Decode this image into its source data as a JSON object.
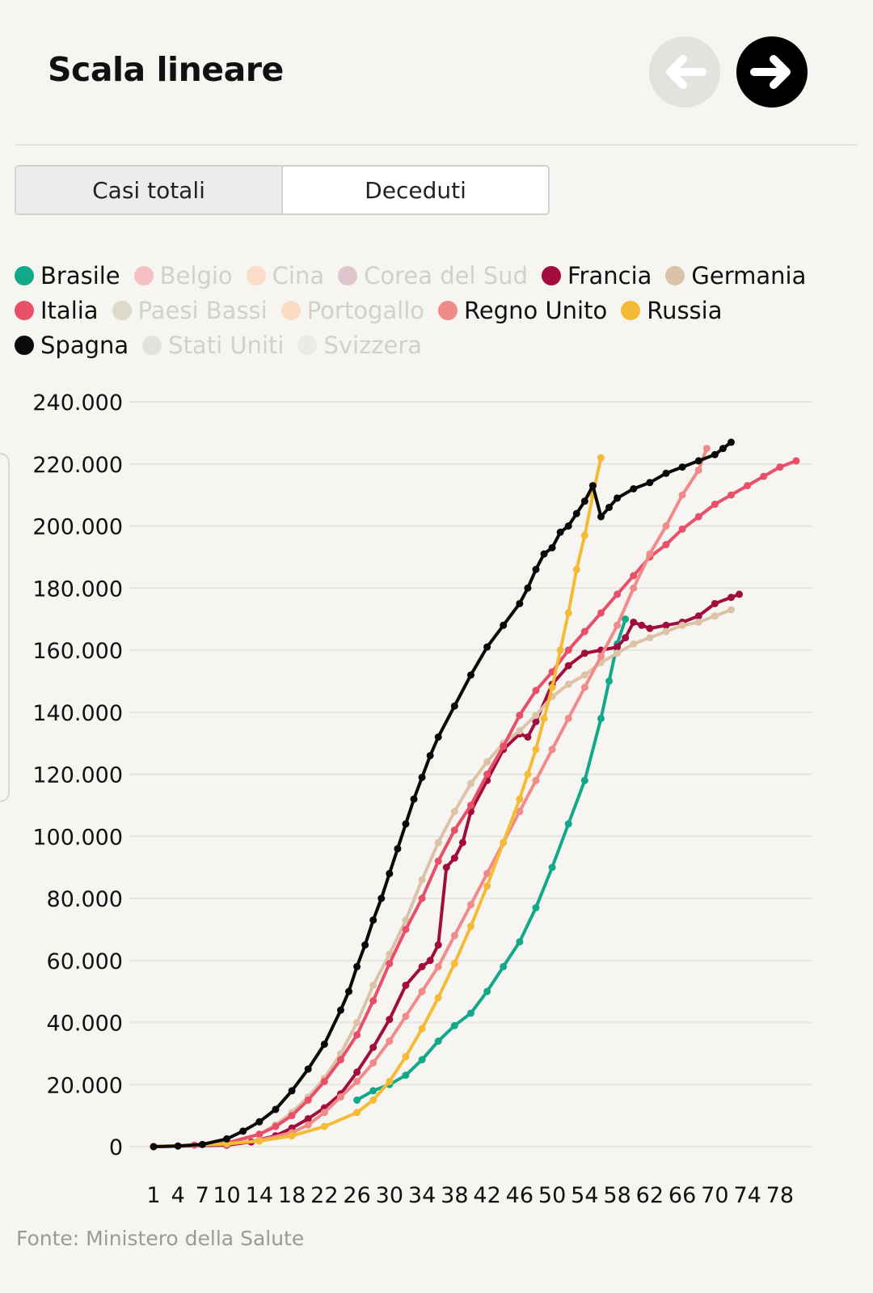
{
  "header": {
    "title": "Scala lineare",
    "prev_icon": "arrow-left-icon",
    "next_icon": "arrow-right-icon"
  },
  "tabs": [
    {
      "label": "Casi totali",
      "active": true
    },
    {
      "label": "Deceduti",
      "active": false
    }
  ],
  "source": "Fonte: Ministero della Salute",
  "chart_data": {
    "type": "line",
    "title": "",
    "xlabel": "",
    "ylabel": "",
    "xlim": [
      1,
      80
    ],
    "ylim": [
      0,
      240000
    ],
    "x_ticks": [
      "1",
      "4",
      "7",
      "10",
      "14",
      "18",
      "22",
      "26",
      "30",
      "34",
      "38",
      "42",
      "46",
      "50",
      "54",
      "58",
      "62",
      "66",
      "70",
      "74",
      "78"
    ],
    "y_ticks": [
      "0",
      "20.000",
      "40.000",
      "60.000",
      "80.000",
      "100.000",
      "120.000",
      "140.000",
      "160.000",
      "180.000",
      "200.000",
      "220.000",
      "240.000"
    ],
    "grid": true,
    "legend_position": "top",
    "series": [
      {
        "name": "Brasile",
        "color": "#12a98b",
        "active": true,
        "points": [
          [
            26,
            15000
          ],
          [
            28,
            18000
          ],
          [
            30,
            20000
          ],
          [
            32,
            23000
          ],
          [
            34,
            28000
          ],
          [
            36,
            34000
          ],
          [
            38,
            39000
          ],
          [
            40,
            43000
          ],
          [
            42,
            50000
          ],
          [
            44,
            58000
          ],
          [
            46,
            66000
          ],
          [
            48,
            77000
          ],
          [
            50,
            90000
          ],
          [
            52,
            104000
          ],
          [
            54,
            118000
          ],
          [
            56,
            138000
          ],
          [
            57,
            150000
          ],
          [
            58,
            162000
          ],
          [
            59,
            170000
          ]
        ]
      },
      {
        "name": "Belgio",
        "color": "#f4c0c4",
        "active": false,
        "points": []
      },
      {
        "name": "Cina",
        "color": "#fbdcc8",
        "active": false,
        "points": []
      },
      {
        "name": "Corea del Sud",
        "color": "#dfc5cc",
        "active": false,
        "points": []
      },
      {
        "name": "Francia",
        "color": "#a10e3e",
        "active": true,
        "points": [
          [
            1,
            0
          ],
          [
            10,
            500
          ],
          [
            13,
            1500
          ],
          [
            16,
            3500
          ],
          [
            18,
            6000
          ],
          [
            20,
            9000
          ],
          [
            22,
            12500
          ],
          [
            24,
            17000
          ],
          [
            26,
            24000
          ],
          [
            28,
            32000
          ],
          [
            30,
            41000
          ],
          [
            32,
            52000
          ],
          [
            34,
            58000
          ],
          [
            35,
            60000
          ],
          [
            36,
            65000
          ],
          [
            37,
            90000
          ],
          [
            38,
            93000
          ],
          [
            39,
            98000
          ],
          [
            40,
            108000
          ],
          [
            42,
            118000
          ],
          [
            44,
            128000
          ],
          [
            46,
            133000
          ],
          [
            47,
            132000
          ],
          [
            48,
            137000
          ],
          [
            50,
            149000
          ],
          [
            52,
            155000
          ],
          [
            54,
            159000
          ],
          [
            56,
            160000
          ],
          [
            58,
            161000
          ],
          [
            59,
            164000
          ],
          [
            60,
            169000
          ],
          [
            61,
            168000
          ],
          [
            62,
            167000
          ],
          [
            64,
            168000
          ],
          [
            66,
            169000
          ],
          [
            68,
            171000
          ],
          [
            70,
            175000
          ],
          [
            72,
            177000
          ],
          [
            73,
            178000
          ]
        ]
      },
      {
        "name": "Germania",
        "color": "#dcc3a8",
        "active": true,
        "points": [
          [
            1,
            0
          ],
          [
            10,
            800
          ],
          [
            14,
            4000
          ],
          [
            16,
            7000
          ],
          [
            18,
            11000
          ],
          [
            20,
            16000
          ],
          [
            22,
            22000
          ],
          [
            24,
            30000
          ],
          [
            26,
            40000
          ],
          [
            28,
            52000
          ],
          [
            30,
            62000
          ],
          [
            32,
            73000
          ],
          [
            34,
            86000
          ],
          [
            36,
            98000
          ],
          [
            38,
            108000
          ],
          [
            40,
            117000
          ],
          [
            42,
            124000
          ],
          [
            44,
            130000
          ],
          [
            46,
            134000
          ],
          [
            48,
            139000
          ],
          [
            50,
            145000
          ],
          [
            52,
            149000
          ],
          [
            54,
            152000
          ],
          [
            56,
            156000
          ],
          [
            58,
            159000
          ],
          [
            60,
            162000
          ],
          [
            62,
            164000
          ],
          [
            64,
            166000
          ],
          [
            66,
            168000
          ],
          [
            68,
            169000
          ],
          [
            70,
            171000
          ],
          [
            72,
            173000
          ]
        ]
      },
      {
        "name": "Italia",
        "color": "#e84f68",
        "active": true,
        "points": [
          [
            1,
            0
          ],
          [
            6,
            500
          ],
          [
            10,
            1200
          ],
          [
            14,
            4000
          ],
          [
            16,
            6500
          ],
          [
            18,
            10000
          ],
          [
            20,
            15000
          ],
          [
            22,
            21000
          ],
          [
            24,
            28000
          ],
          [
            26,
            36000
          ],
          [
            28,
            47000
          ],
          [
            30,
            59000
          ],
          [
            32,
            70000
          ],
          [
            34,
            80000
          ],
          [
            36,
            92000
          ],
          [
            38,
            102000
          ],
          [
            40,
            110000
          ],
          [
            42,
            120000
          ],
          [
            44,
            129000
          ],
          [
            46,
            139000
          ],
          [
            48,
            147000
          ],
          [
            50,
            153000
          ],
          [
            52,
            160000
          ],
          [
            54,
            166000
          ],
          [
            56,
            172000
          ],
          [
            58,
            178000
          ],
          [
            60,
            184000
          ],
          [
            62,
            190000
          ],
          [
            64,
            194000
          ],
          [
            66,
            199000
          ],
          [
            68,
            203000
          ],
          [
            70,
            207000
          ],
          [
            72,
            210000
          ],
          [
            74,
            213000
          ],
          [
            76,
            216000
          ],
          [
            78,
            219000
          ],
          [
            80,
            221000
          ]
        ]
      },
      {
        "name": "Paesi Bassi",
        "color": "#dddccb",
        "active": false,
        "points": []
      },
      {
        "name": "Portogallo",
        "color": "#fbdbbf",
        "active": false,
        "points": []
      },
      {
        "name": "Regno Unito",
        "color": "#f08b8a",
        "active": true,
        "points": [
          [
            1,
            0
          ],
          [
            10,
            800
          ],
          [
            14,
            2000
          ],
          [
            18,
            4500
          ],
          [
            20,
            7000
          ],
          [
            22,
            11000
          ],
          [
            24,
            16000
          ],
          [
            26,
            21000
          ],
          [
            28,
            27000
          ],
          [
            30,
            34000
          ],
          [
            32,
            42000
          ],
          [
            34,
            50000
          ],
          [
            36,
            58000
          ],
          [
            38,
            68000
          ],
          [
            40,
            78000
          ],
          [
            42,
            88000
          ],
          [
            44,
            98000
          ],
          [
            46,
            108000
          ],
          [
            48,
            118000
          ],
          [
            50,
            128000
          ],
          [
            52,
            138000
          ],
          [
            54,
            148000
          ],
          [
            56,
            158000
          ],
          [
            58,
            168000
          ],
          [
            60,
            180000
          ],
          [
            62,
            191000
          ],
          [
            64,
            200000
          ],
          [
            66,
            210000
          ],
          [
            68,
            218000
          ],
          [
            69,
            225000
          ]
        ]
      },
      {
        "name": "Russia",
        "color": "#f5bb37",
        "active": true,
        "points": [
          [
            1,
            0
          ],
          [
            10,
            1000
          ],
          [
            14,
            1800
          ],
          [
            18,
            3500
          ],
          [
            22,
            6500
          ],
          [
            26,
            11000
          ],
          [
            28,
            15000
          ],
          [
            30,
            21000
          ],
          [
            32,
            29000
          ],
          [
            34,
            38000
          ],
          [
            36,
            48000
          ],
          [
            38,
            59000
          ],
          [
            40,
            71000
          ],
          [
            42,
            84000
          ],
          [
            44,
            98000
          ],
          [
            46,
            112000
          ],
          [
            47,
            120000
          ],
          [
            48,
            128000
          ],
          [
            49,
            138000
          ],
          [
            50,
            148000
          ],
          [
            51,
            160000
          ],
          [
            52,
            172000
          ],
          [
            53,
            186000
          ],
          [
            54,
            197000
          ],
          [
            55,
            210000
          ],
          [
            56,
            222000
          ]
        ]
      },
      {
        "name": "Spagna",
        "color": "#0a0a0a",
        "active": true,
        "points": [
          [
            1,
            0
          ],
          [
            4,
            200
          ],
          [
            7,
            700
          ],
          [
            10,
            2500
          ],
          [
            12,
            5000
          ],
          [
            14,
            8000
          ],
          [
            16,
            12000
          ],
          [
            18,
            18000
          ],
          [
            20,
            25000
          ],
          [
            22,
            33000
          ],
          [
            24,
            44000
          ],
          [
            25,
            50000
          ],
          [
            26,
            58000
          ],
          [
            27,
            65000
          ],
          [
            28,
            73000
          ],
          [
            29,
            80000
          ],
          [
            30,
            88000
          ],
          [
            31,
            96000
          ],
          [
            32,
            104000
          ],
          [
            33,
            112000
          ],
          [
            34,
            119000
          ],
          [
            35,
            126000
          ],
          [
            36,
            132000
          ],
          [
            38,
            142000
          ],
          [
            40,
            152000
          ],
          [
            42,
            161000
          ],
          [
            44,
            168000
          ],
          [
            46,
            175000
          ],
          [
            47,
            180000
          ],
          [
            48,
            186000
          ],
          [
            49,
            191000
          ],
          [
            50,
            193000
          ],
          [
            51,
            198000
          ],
          [
            52,
            200000
          ],
          [
            53,
            204000
          ],
          [
            54,
            208000
          ],
          [
            55,
            213000
          ],
          [
            56,
            203000
          ],
          [
            57,
            206000
          ],
          [
            58,
            209000
          ],
          [
            60,
            212000
          ],
          [
            62,
            214000
          ],
          [
            64,
            217000
          ],
          [
            66,
            219000
          ],
          [
            68,
            221000
          ],
          [
            70,
            223000
          ],
          [
            71,
            225000
          ],
          [
            72,
            227000
          ]
        ]
      },
      {
        "name": "Stati Uniti",
        "color": "#e2e1de",
        "active": false,
        "points": []
      },
      {
        "name": "Svizzera",
        "color": "#ebeae7",
        "active": false,
        "points": []
      }
    ]
  }
}
